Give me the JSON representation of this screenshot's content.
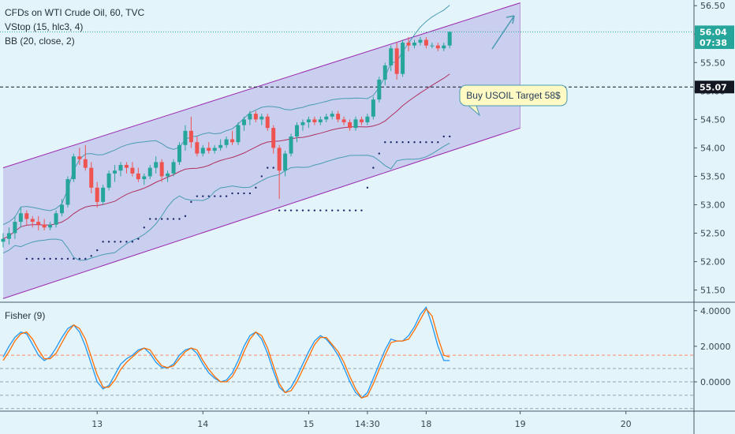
{
  "legend": {
    "title": "CFDs on WTI Crude Oil, 60, TVC",
    "line2": "VStop (15, hlc3, 4)",
    "line3": "BB (20, close, 2)",
    "fisher": "Fisher (9)"
  },
  "annotation": {
    "text": "Buy USOIL Target 58$"
  },
  "colors": {
    "up": "#26a69a",
    "down": "#ef5350",
    "channel_fill": "#c5c8ec",
    "channel_line": "#9c27b0",
    "bb_band": "#4a9bb3",
    "bb_mid": "#b03060",
    "vstop": "#1b2a6b",
    "fisher": "#2196f3",
    "trigger": "#ff6d00",
    "background": "#e3f4fb"
  },
  "price_badges": [
    {
      "label": "56.04",
      "value": 56.04,
      "color": "#26a69a"
    },
    {
      "label": "07:38",
      "value": 55.85,
      "color": "#26a69a"
    },
    {
      "label": "55.07",
      "value": 55.07,
      "color": "#131722"
    }
  ],
  "chart_data": [
    {
      "type": "candlestick",
      "title": "CFDs on WTI Crude Oil, 60, TVC",
      "ylim": [
        51.3,
        56.6
      ],
      "y_ticks": [
        "56.50",
        "56.00",
        "55.50",
        "55.00",
        "54.50",
        "54.00",
        "53.50",
        "53.00",
        "52.50",
        "52.00",
        "51.50"
      ],
      "x_ticks": [
        "13",
        "14",
        "15",
        "14:30",
        "18",
        "19",
        "20"
      ],
      "horizontal_line": 55.07,
      "channel": {
        "upper": [
          [
            0,
            53.65
          ],
          [
            88,
            56.55
          ]
        ],
        "lower": [
          [
            0,
            51.35
          ],
          [
            88,
            54.35
          ]
        ]
      },
      "ohlc": [
        [
          52.35,
          52.5,
          52.25,
          52.4
        ],
        [
          52.4,
          52.6,
          52.3,
          52.5
        ],
        [
          52.5,
          52.8,
          52.4,
          52.7
        ],
        [
          52.7,
          52.95,
          52.6,
          52.85
        ],
        [
          52.85,
          52.9,
          52.65,
          52.75
        ],
        [
          52.75,
          52.8,
          52.6,
          52.7
        ],
        [
          52.7,
          52.8,
          52.55,
          52.65
        ],
        [
          52.65,
          52.75,
          52.55,
          52.6
        ],
        [
          52.6,
          52.7,
          52.55,
          52.65
        ],
        [
          52.65,
          52.9,
          52.6,
          52.85
        ],
        [
          52.85,
          53.1,
          52.8,
          53.0
        ],
        [
          53.0,
          53.5,
          52.95,
          53.45
        ],
        [
          53.45,
          53.9,
          53.4,
          53.85
        ],
        [
          53.85,
          54.0,
          53.7,
          53.8
        ],
        [
          53.8,
          54.05,
          53.6,
          53.65
        ],
        [
          53.65,
          53.75,
          53.2,
          53.3
        ],
        [
          53.3,
          53.4,
          52.95,
          53.05
        ],
        [
          53.05,
          53.35,
          53.0,
          53.3
        ],
        [
          53.3,
          53.6,
          53.25,
          53.55
        ],
        [
          53.55,
          53.7,
          53.4,
          53.6
        ],
        [
          53.6,
          53.75,
          53.5,
          53.7
        ],
        [
          53.7,
          53.75,
          53.55,
          53.65
        ],
        [
          53.65,
          53.75,
          53.5,
          53.55
        ],
        [
          53.55,
          53.65,
          53.4,
          53.45
        ],
        [
          53.45,
          53.55,
          53.35,
          53.5
        ],
        [
          53.5,
          53.7,
          53.45,
          53.65
        ],
        [
          53.65,
          53.85,
          53.55,
          53.75
        ],
        [
          53.75,
          53.8,
          53.4,
          53.5
        ],
        [
          53.5,
          53.6,
          53.4,
          53.55
        ],
        [
          53.55,
          53.8,
          53.5,
          53.75
        ],
        [
          53.75,
          54.1,
          53.7,
          54.05
        ],
        [
          54.05,
          54.4,
          53.95,
          54.3
        ],
        [
          54.3,
          54.55,
          54.0,
          54.1
        ],
        [
          54.1,
          54.2,
          53.85,
          53.9
        ],
        [
          53.9,
          54.05,
          53.85,
          54.0
        ],
        [
          54.0,
          54.1,
          53.9,
          53.95
        ],
        [
          53.95,
          54.05,
          53.9,
          54.0
        ],
        [
          54.0,
          54.15,
          53.95,
          54.05
        ],
        [
          54.05,
          54.2,
          54.0,
          54.15
        ],
        [
          54.15,
          54.3,
          54.05,
          54.1
        ],
        [
          54.1,
          54.45,
          54.05,
          54.4
        ],
        [
          54.4,
          54.55,
          54.3,
          54.5
        ],
        [
          54.5,
          54.65,
          54.4,
          54.6
        ],
        [
          54.6,
          54.65,
          54.45,
          54.5
        ],
        [
          54.5,
          54.6,
          54.4,
          54.55
        ],
        [
          54.55,
          54.6,
          54.3,
          54.35
        ],
        [
          54.35,
          54.4,
          53.9,
          54.0
        ],
        [
          54.0,
          54.05,
          53.1,
          53.6
        ],
        [
          53.6,
          53.95,
          53.5,
          53.9
        ],
        [
          53.9,
          54.25,
          53.85,
          54.2
        ],
        [
          54.2,
          54.45,
          54.1,
          54.4
        ],
        [
          54.4,
          54.5,
          54.3,
          54.45
        ],
        [
          54.45,
          54.55,
          54.35,
          54.5
        ],
        [
          54.5,
          54.55,
          54.4,
          54.45
        ],
        [
          54.45,
          54.55,
          54.4,
          54.5
        ],
        [
          54.5,
          54.6,
          54.45,
          54.55
        ],
        [
          54.55,
          54.65,
          54.5,
          54.6
        ],
        [
          54.6,
          54.65,
          54.45,
          54.5
        ],
        [
          54.5,
          54.55,
          54.4,
          54.45
        ],
        [
          54.45,
          54.5,
          54.3,
          54.35
        ],
        [
          54.35,
          54.55,
          54.3,
          54.5
        ],
        [
          54.5,
          54.55,
          54.4,
          54.45
        ],
        [
          54.45,
          54.6,
          54.4,
          54.55
        ],
        [
          54.55,
          54.9,
          54.5,
          54.85
        ],
        [
          54.85,
          55.25,
          54.8,
          55.2
        ],
        [
          55.2,
          55.5,
          55.1,
          55.45
        ],
        [
          55.45,
          55.8,
          55.35,
          55.75
        ],
        [
          55.75,
          55.85,
          55.2,
          55.3
        ],
        [
          55.3,
          55.9,
          55.25,
          55.85
        ],
        [
          55.85,
          55.95,
          55.7,
          55.8
        ],
        [
          55.8,
          55.9,
          55.75,
          55.85
        ],
        [
          55.85,
          55.95,
          55.8,
          55.9
        ],
        [
          55.9,
          55.95,
          55.75,
          55.8
        ],
        [
          55.8,
          55.85,
          55.75,
          55.8
        ],
        [
          55.8,
          55.85,
          55.7,
          55.75
        ],
        [
          55.75,
          55.85,
          55.7,
          55.8
        ],
        [
          55.8,
          56.05,
          55.75,
          56.04
        ]
      ]
    },
    {
      "type": "line",
      "title": "Fisher (9)",
      "ylim": [
        -1.6,
        4.3
      ],
      "y_ticks": [
        "4.0000",
        "2.0000",
        "0.0000"
      ],
      "ref_levels": [
        1.5,
        0.75,
        0.0,
        -0.75,
        -1.5
      ],
      "series": [
        {
          "values": [
            1.4,
            2.0,
            2.5,
            2.8,
            2.7,
            2.1,
            1.5,
            1.2,
            1.4,
            1.9,
            2.5,
            3.0,
            3.2,
            2.8,
            2.0,
            1.0,
            0.0,
            -0.4,
            -0.2,
            0.4,
            1.0,
            1.3,
            1.5,
            1.8,
            1.9,
            1.6,
            1.1,
            0.8,
            0.8,
            1.0,
            1.5,
            1.8,
            1.9,
            1.6,
            1.0,
            0.5,
            0.2,
            0.0,
            0.1,
            0.5,
            1.2,
            2.0,
            2.6,
            2.8,
            2.4,
            1.6,
            0.6,
            -0.3,
            -0.6,
            -0.3,
            0.3,
            1.0,
            1.7,
            2.3,
            2.6,
            2.4,
            2.0,
            1.5,
            0.8,
            0.0,
            -0.6,
            -0.9,
            -0.6,
            0.2,
            1.0,
            1.8,
            2.4,
            2.3,
            2.3,
            2.6,
            3.1,
            3.8,
            4.2,
            3.2,
            2.0,
            1.2,
            1.2
          ]
        },
        {
          "values": [
            1.2,
            1.7,
            2.3,
            2.7,
            2.8,
            2.4,
            1.8,
            1.3,
            1.3,
            1.6,
            2.2,
            2.8,
            3.2,
            3.0,
            2.4,
            1.4,
            0.4,
            -0.3,
            -0.3,
            0.1,
            0.7,
            1.1,
            1.4,
            1.7,
            1.9,
            1.8,
            1.3,
            0.9,
            0.8,
            0.9,
            1.3,
            1.7,
            1.9,
            1.8,
            1.2,
            0.7,
            0.3,
            0.0,
            0.0,
            0.3,
            0.9,
            1.7,
            2.4,
            2.8,
            2.6,
            1.9,
            0.9,
            -0.1,
            -0.6,
            -0.5,
            0.0,
            0.7,
            1.4,
            2.1,
            2.5,
            2.5,
            2.1,
            1.7,
            1.1,
            0.3,
            -0.4,
            -0.9,
            -0.8,
            -0.1,
            0.7,
            1.5,
            2.2,
            2.3,
            2.3,
            2.4,
            2.9,
            3.5,
            4.1,
            3.7,
            2.5,
            1.5,
            1.4
          ]
        }
      ]
    }
  ]
}
